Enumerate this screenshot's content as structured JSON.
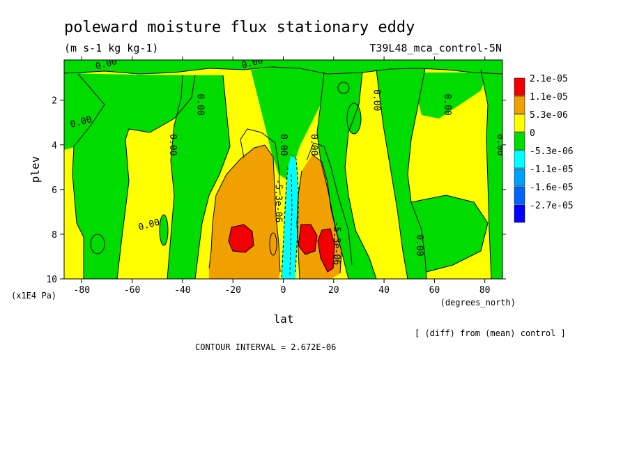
{
  "chart_data": {
    "type": "heatmap",
    "title": "poleward moisture flux stationary eddy",
    "units": "(m s-1 kg kg-1)",
    "experiment": "T39L48_mca_control-5N",
    "xlabel": "lat",
    "xunits": "(degrees_north)",
    "ylabel": "plev",
    "yunits": "(x1E4 Pa)",
    "xlim": [
      -87,
      87
    ],
    "ylim": [
      10,
      0.2
    ],
    "x_ticks": [
      -80,
      -60,
      -40,
      -20,
      0,
      20,
      40,
      60,
      80
    ],
    "x_tick_labels": [
      "-80",
      "-60",
      "-40",
      "-20",
      "0",
      "20",
      "40",
      "60",
      "80"
    ],
    "y_ticks": [
      2,
      4,
      6,
      8,
      10
    ],
    "y_tick_labels": [
      "2",
      "4",
      "6",
      "8",
      "10"
    ],
    "contour_interval_text": "CONTOUR INTERVAL = 2.672E-06",
    "note": "[ (diff) from (mean) control ]",
    "legend": {
      "placement": "right",
      "levels": [
        {
          "label": "2.1e-05",
          "color": "#f00000"
        },
        {
          "label": "1.1e-05",
          "color": "#f0a000"
        },
        {
          "label": "5.3e-06",
          "color": "#ffff00"
        },
        {
          "label": "0",
          "color": "#00dc00"
        },
        {
          "label": "-5.3e-06",
          "color": "#00ffff"
        },
        {
          "label": "-1.1e-05",
          "color": "#00a0ff"
        },
        {
          "label": "-1.6e-05",
          "color": "#0064ff"
        },
        {
          "label": "-2.7e-05",
          "color": "#0000ff"
        }
      ]
    },
    "contour_labels": [
      {
        "text": "0.00",
        "lat": -70,
        "plev": 0.5
      },
      {
        "text": "0.00",
        "lat": -12,
        "plev": 0.45
      },
      {
        "text": "0.00",
        "lat": -80,
        "plev": 3.1
      },
      {
        "text": "0.00",
        "lat": -34,
        "plev": 2.2
      },
      {
        "text": "0.00",
        "lat": -45,
        "plev": 4.0
      },
      {
        "text": "0.00",
        "lat": -53,
        "plev": 7.7
      },
      {
        "text": "0.00",
        "lat": -1,
        "plev": 4.0
      },
      {
        "text": "0.00",
        "lat": 11,
        "plev": 4.0
      },
      {
        "text": "0.00",
        "lat": 36,
        "plev": 2.0
      },
      {
        "text": "0.00",
        "lat": 64,
        "plev": 2.2
      },
      {
        "text": "0.00",
        "lat": 85,
        "plev": 4.0
      },
      {
        "text": "0.00",
        "lat": 53,
        "plev": 8.5
      },
      {
        "text": "-5.3e-06",
        "lat": -3,
        "plev": 6.5
      },
      {
        "text": "-5.3e-06",
        "lat": 20,
        "plev": 8.4
      }
    ],
    "colors": {
      "red": "#f00000",
      "orange": "#f0a000",
      "yellow": "#ffff00",
      "green": "#00dc00",
      "cyan": "#00ffff",
      "lightblue": "#00a0ff",
      "blue": "#0064ff",
      "darkblue": "#0000ff"
    }
  }
}
